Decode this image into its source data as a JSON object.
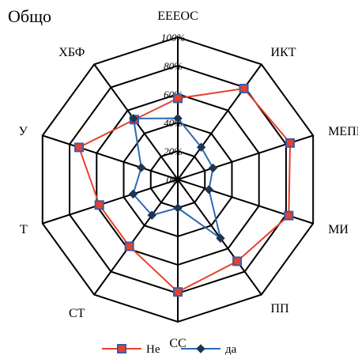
{
  "chart_data": {
    "type": "radar",
    "title": "Общо",
    "categories": [
      "EEEOC",
      "ИКТ",
      "МЕПЕ",
      "МИ",
      "ПП",
      "СС",
      "СТ",
      "Т",
      "У",
      "ХБФ"
    ],
    "rmin": 0,
    "rmax": 100,
    "ticks": [
      0,
      20,
      40,
      60,
      80,
      100
    ],
    "tick_labels": [
      "0%",
      "20%",
      "40%",
      "60%",
      "80%",
      "100%"
    ],
    "series": [
      {
        "name": "Не",
        "values": [
          57,
          79,
          83,
          82,
          71,
          79,
          58,
          58,
          73,
          52
        ],
        "line_color": "#e8412b",
        "marker_fill": "#e8412b",
        "marker_stroke": "#3b5ba8",
        "marker": "square"
      },
      {
        "name": "да",
        "values": [
          43,
          28,
          26,
          23,
          51,
          20,
          31,
          33,
          27,
          53
        ],
        "line_color": "#2a6ab5",
        "marker_fill": "#1f3553",
        "marker_stroke": "#1f3553",
        "marker": "diamond"
      }
    ],
    "legend": "bottom"
  }
}
